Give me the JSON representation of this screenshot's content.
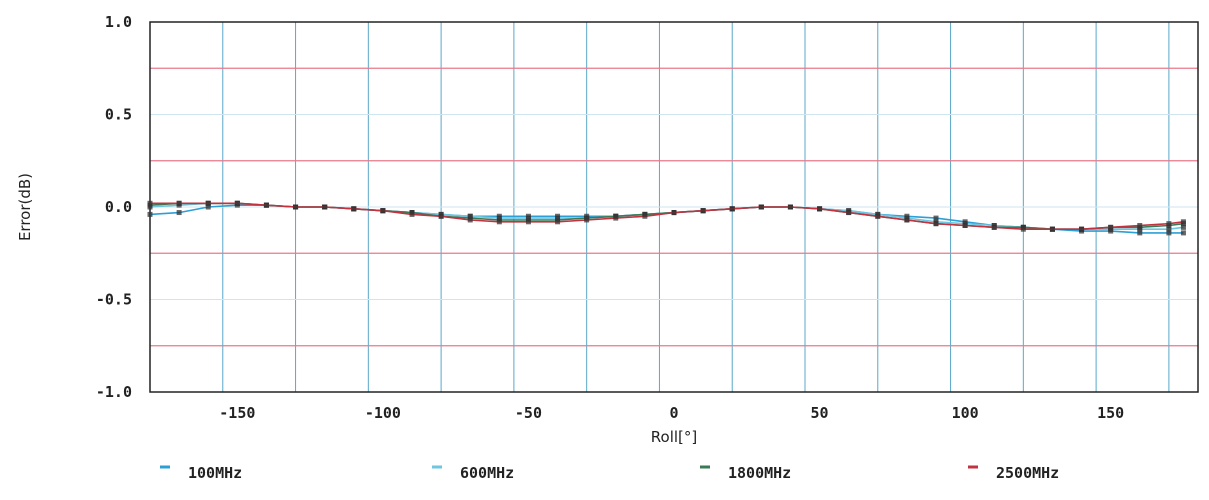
{
  "chart_data": {
    "type": "line",
    "title": "",
    "xlabel": "Roll[°]",
    "ylabel": "Error(dB)",
    "xlim": [
      -180,
      180
    ],
    "ylim": [
      -1.0,
      1.0
    ],
    "x_ticks": [
      -150,
      -100,
      -50,
      0,
      50,
      100,
      150
    ],
    "y_ticks": [
      1.0,
      0.5,
      0.0,
      -0.5,
      -1.0
    ],
    "y_tick_labels": [
      "1.0",
      "0.5",
      "0.0",
      "-0.5",
      "-1.0"
    ],
    "grid": true,
    "x_grid_step": 25,
    "reference_lines": [
      0.75,
      0.25,
      -0.25,
      -0.75
    ],
    "reference_line_color": "#e87a8a",
    "x": [
      -180,
      -170,
      -160,
      -150,
      -140,
      -130,
      -120,
      -110,
      -100,
      -90,
      -80,
      -70,
      -60,
      -50,
      -40,
      -30,
      -20,
      -10,
      0,
      10,
      20,
      30,
      40,
      50,
      60,
      70,
      80,
      90,
      100,
      110,
      120,
      130,
      140,
      150,
      160,
      170,
      175
    ],
    "series": [
      {
        "name": "100MHz",
        "color": "#2c9fd6",
        "values": [
          -0.04,
          -0.03,
          0.0,
          0.01,
          0.01,
          0.0,
          0.0,
          -0.01,
          -0.02,
          -0.03,
          -0.04,
          -0.05,
          -0.05,
          -0.05,
          -0.05,
          -0.05,
          -0.05,
          -0.04,
          -0.03,
          -0.02,
          -0.01,
          0.0,
          0.0,
          -0.01,
          -0.02,
          -0.04,
          -0.05,
          -0.06,
          -0.08,
          -0.1,
          -0.11,
          -0.12,
          -0.13,
          -0.13,
          -0.14,
          -0.14,
          -0.14
        ]
      },
      {
        "name": "600MHz",
        "color": "#6ec6e0",
        "values": [
          0.0,
          0.01,
          0.02,
          0.02,
          0.01,
          0.0,
          0.0,
          -0.01,
          -0.02,
          -0.03,
          -0.04,
          -0.05,
          -0.06,
          -0.06,
          -0.06,
          -0.06,
          -0.05,
          -0.04,
          -0.03,
          -0.02,
          -0.01,
          0.0,
          0.0,
          -0.01,
          -0.02,
          -0.04,
          -0.06,
          -0.08,
          -0.09,
          -0.1,
          -0.11,
          -0.12,
          -0.12,
          -0.12,
          -0.12,
          -0.12,
          -0.11
        ]
      },
      {
        "name": "1800MHz",
        "color": "#3a7a55",
        "values": [
          0.01,
          0.02,
          0.02,
          0.02,
          0.01,
          0.0,
          0.0,
          -0.01,
          -0.02,
          -0.03,
          -0.05,
          -0.06,
          -0.07,
          -0.07,
          -0.07,
          -0.06,
          -0.05,
          -0.04,
          -0.03,
          -0.02,
          -0.01,
          0.0,
          0.0,
          -0.01,
          -0.03,
          -0.05,
          -0.07,
          -0.09,
          -0.1,
          -0.11,
          -0.11,
          -0.12,
          -0.12,
          -0.11,
          -0.11,
          -0.1,
          -0.09
        ]
      },
      {
        "name": "2500MHz",
        "color": "#c2333f",
        "values": [
          0.02,
          0.02,
          0.02,
          0.02,
          0.01,
          0.0,
          0.0,
          -0.01,
          -0.02,
          -0.04,
          -0.05,
          -0.07,
          -0.08,
          -0.08,
          -0.08,
          -0.07,
          -0.06,
          -0.05,
          -0.03,
          -0.02,
          -0.01,
          0.0,
          0.0,
          -0.01,
          -0.03,
          -0.05,
          -0.07,
          -0.09,
          -0.1,
          -0.11,
          -0.12,
          -0.12,
          -0.12,
          -0.11,
          -0.1,
          -0.09,
          -0.08
        ]
      }
    ],
    "legend": {
      "placement": "bottom",
      "entries": [
        "100MHz",
        "600MHz",
        "1800MHz",
        "2500MHz"
      ]
    }
  }
}
